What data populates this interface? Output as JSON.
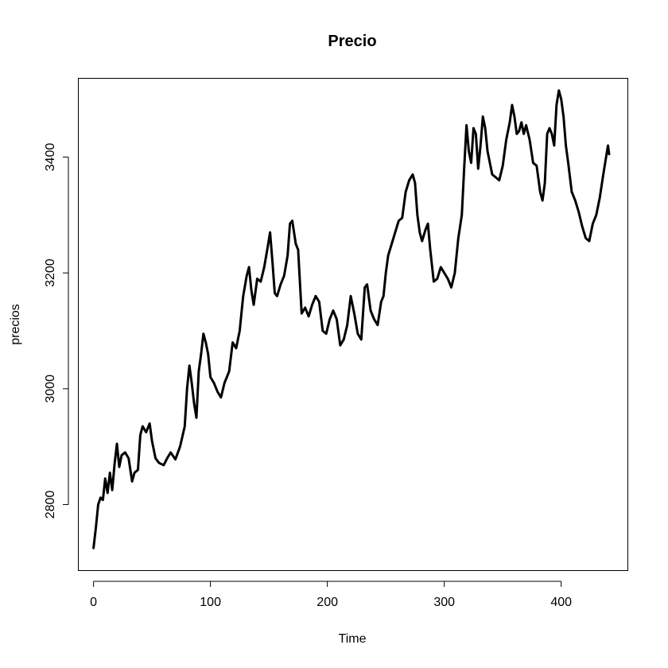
{
  "chart_data": {
    "type": "line",
    "title": "Precio",
    "xlabel": "Time",
    "ylabel": "precios",
    "xlim": [
      -13,
      457
    ],
    "ylim": [
      2686,
      3536
    ],
    "x_ticks": [
      0,
      100,
      200,
      300,
      400
    ],
    "y_ticks": [
      2800,
      3000,
      3200,
      3400
    ],
    "grid": false,
    "series": [
      {
        "points": [
          [
            0,
            2725
          ],
          [
            2,
            2760
          ],
          [
            4,
            2800
          ],
          [
            6,
            2812
          ],
          [
            8,
            2808
          ],
          [
            10,
            2845
          ],
          [
            12,
            2820
          ],
          [
            14,
            2855
          ],
          [
            16,
            2825
          ],
          [
            18,
            2870
          ],
          [
            20,
            2905
          ],
          [
            22,
            2865
          ],
          [
            24,
            2885
          ],
          [
            27,
            2890
          ],
          [
            30,
            2880
          ],
          [
            33,
            2840
          ],
          [
            35,
            2855
          ],
          [
            38,
            2860
          ],
          [
            40,
            2920
          ],
          [
            42,
            2935
          ],
          [
            45,
            2925
          ],
          [
            48,
            2940
          ],
          [
            50,
            2910
          ],
          [
            53,
            2880
          ],
          [
            56,
            2872
          ],
          [
            60,
            2868
          ],
          [
            63,
            2880
          ],
          [
            66,
            2890
          ],
          [
            70,
            2878
          ],
          [
            74,
            2900
          ],
          [
            78,
            2935
          ],
          [
            80,
            3000
          ],
          [
            82,
            3040
          ],
          [
            84,
            3010
          ],
          [
            86,
            2975
          ],
          [
            88,
            2950
          ],
          [
            90,
            3030
          ],
          [
            92,
            3060
          ],
          [
            94,
            3095
          ],
          [
            96,
            3080
          ],
          [
            98,
            3060
          ],
          [
            100,
            3020
          ],
          [
            103,
            3010
          ],
          [
            106,
            2995
          ],
          [
            109,
            2985
          ],
          [
            112,
            3010
          ],
          [
            116,
            3030
          ],
          [
            119,
            3080
          ],
          [
            122,
            3070
          ],
          [
            125,
            3100
          ],
          [
            128,
            3160
          ],
          [
            131,
            3195
          ],
          [
            133,
            3210
          ],
          [
            135,
            3170
          ],
          [
            137,
            3145
          ],
          [
            140,
            3190
          ],
          [
            143,
            3185
          ],
          [
            146,
            3210
          ],
          [
            149,
            3245
          ],
          [
            151,
            3270
          ],
          [
            153,
            3220
          ],
          [
            155,
            3165
          ],
          [
            157,
            3160
          ],
          [
            160,
            3180
          ],
          [
            163,
            3195
          ],
          [
            166,
            3230
          ],
          [
            168,
            3285
          ],
          [
            170,
            3290
          ],
          [
            173,
            3250
          ],
          [
            175,
            3240
          ],
          [
            178,
            3130
          ],
          [
            181,
            3140
          ],
          [
            184,
            3125
          ],
          [
            187,
            3145
          ],
          [
            190,
            3160
          ],
          [
            193,
            3150
          ],
          [
            196,
            3100
          ],
          [
            199,
            3095
          ],
          [
            202,
            3120
          ],
          [
            205,
            3135
          ],
          [
            208,
            3120
          ],
          [
            211,
            3075
          ],
          [
            214,
            3085
          ],
          [
            217,
            3110
          ],
          [
            220,
            3160
          ],
          [
            223,
            3130
          ],
          [
            226,
            3095
          ],
          [
            229,
            3085
          ],
          [
            232,
            3175
          ],
          [
            234,
            3180
          ],
          [
            237,
            3135
          ],
          [
            240,
            3120
          ],
          [
            243,
            3110
          ],
          [
            246,
            3150
          ],
          [
            248,
            3160
          ],
          [
            250,
            3200
          ],
          [
            252,
            3230
          ],
          [
            255,
            3250
          ],
          [
            258,
            3270
          ],
          [
            261,
            3290
          ],
          [
            264,
            3295
          ],
          [
            267,
            3340
          ],
          [
            270,
            3360
          ],
          [
            273,
            3370
          ],
          [
            275,
            3355
          ],
          [
            277,
            3300
          ],
          [
            279,
            3270
          ],
          [
            281,
            3255
          ],
          [
            284,
            3275
          ],
          [
            286,
            3285
          ],
          [
            288,
            3240
          ],
          [
            291,
            3185
          ],
          [
            294,
            3190
          ],
          [
            297,
            3210
          ],
          [
            300,
            3200
          ],
          [
            303,
            3190
          ],
          [
            306,
            3175
          ],
          [
            309,
            3200
          ],
          [
            312,
            3260
          ],
          [
            315,
            3300
          ],
          [
            317,
            3380
          ],
          [
            319,
            3455
          ],
          [
            321,
            3410
          ],
          [
            323,
            3390
          ],
          [
            325,
            3450
          ],
          [
            327,
            3440
          ],
          [
            329,
            3380
          ],
          [
            331,
            3420
          ],
          [
            333,
            3470
          ],
          [
            335,
            3450
          ],
          [
            337,
            3410
          ],
          [
            339,
            3390
          ],
          [
            341,
            3370
          ],
          [
            344,
            3365
          ],
          [
            347,
            3360
          ],
          [
            350,
            3385
          ],
          [
            353,
            3430
          ],
          [
            356,
            3460
          ],
          [
            358,
            3490
          ],
          [
            360,
            3470
          ],
          [
            362,
            3440
          ],
          [
            364,
            3445
          ],
          [
            366,
            3460
          ],
          [
            368,
            3440
          ],
          [
            370,
            3455
          ],
          [
            373,
            3430
          ],
          [
            376,
            3390
          ],
          [
            379,
            3385
          ],
          [
            382,
            3340
          ],
          [
            384,
            3325
          ],
          [
            386,
            3355
          ],
          [
            388,
            3440
          ],
          [
            390,
            3450
          ],
          [
            392,
            3440
          ],
          [
            394,
            3420
          ],
          [
            396,
            3490
          ],
          [
            398,
            3515
          ],
          [
            400,
            3500
          ],
          [
            402,
            3470
          ],
          [
            404,
            3420
          ],
          [
            406,
            3390
          ],
          [
            409,
            3340
          ],
          [
            412,
            3325
          ],
          [
            415,
            3305
          ],
          [
            418,
            3280
          ],
          [
            421,
            3260
          ],
          [
            424,
            3255
          ],
          [
            427,
            3285
          ],
          [
            430,
            3300
          ],
          [
            433,
            3330
          ],
          [
            436,
            3370
          ],
          [
            438,
            3395
          ],
          [
            440,
            3420
          ],
          [
            441,
            3405
          ]
        ]
      }
    ]
  }
}
